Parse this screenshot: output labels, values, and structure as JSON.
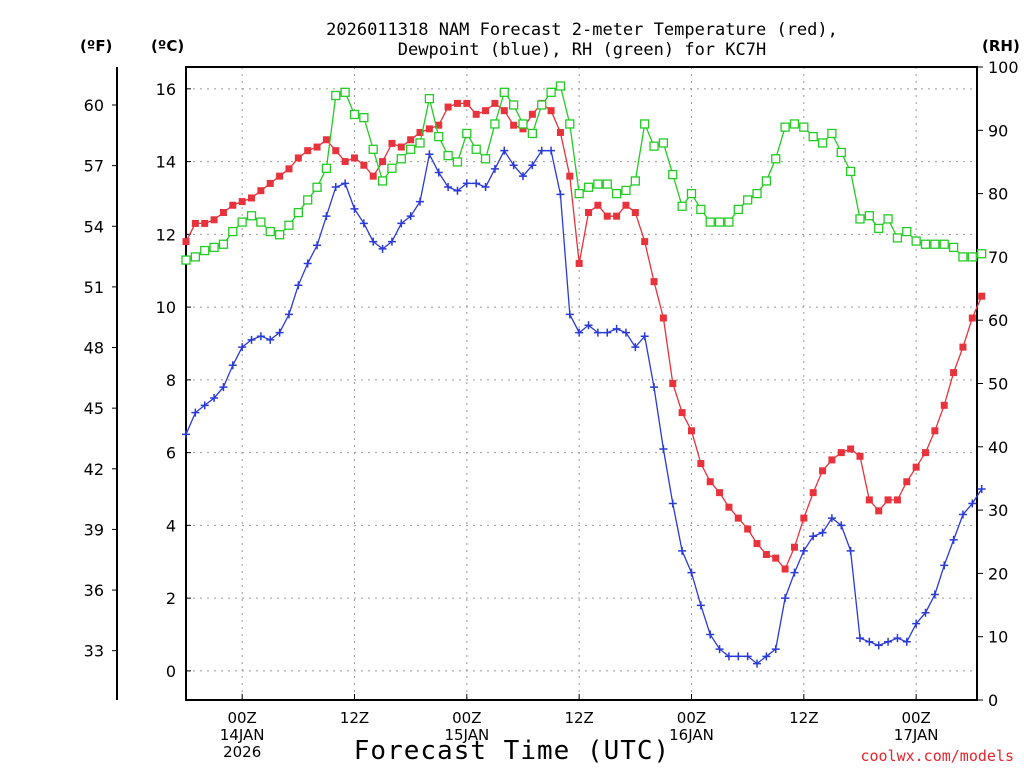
{
  "chart_data": {
    "type": "line",
    "title": [
      "2026011318 NAM Forecast 2-meter Temperature (red),",
      "Dewpoint (blue), RH (green) for KC7H"
    ],
    "xlabel": "Forecast Time (UTC)",
    "credit": "coolwx.com/models",
    "units": {
      "fahrenheit": "(ºF)",
      "celsius": "(ºC)",
      "rh": "(RH)"
    },
    "x_range_hours": [
      -6,
      78.5
    ],
    "x_ticks": [
      {
        "hour": 0,
        "lines": [
          "00Z",
          "14JAN",
          "2026"
        ]
      },
      {
        "hour": 12,
        "lines": [
          "12Z"
        ]
      },
      {
        "hour": 24,
        "lines": [
          "00Z",
          "15JAN"
        ]
      },
      {
        "hour": 36,
        "lines": [
          "12Z"
        ]
      },
      {
        "hour": 48,
        "lines": [
          "00Z",
          "16JAN"
        ]
      },
      {
        "hour": 60,
        "lines": [
          "12Z"
        ]
      },
      {
        "hour": 72,
        "lines": [
          "00Z",
          "17JAN"
        ]
      }
    ],
    "celsius_axis": {
      "range": [
        -0.8,
        16.6
      ],
      "ticks": [
        "0",
        "2",
        "4",
        "6",
        "8",
        "10",
        "12",
        "14",
        "16"
      ]
    },
    "fahrenheit_axis": {
      "ticks": [
        "33",
        "36",
        "39",
        "42",
        "45",
        "48",
        "51",
        "54",
        "57",
        "60"
      ]
    },
    "rh_axis": {
      "range": [
        0,
        100
      ],
      "ticks": [
        "0",
        "10",
        "20",
        "30",
        "40",
        "50",
        "60",
        "70",
        "80",
        "90",
        "100"
      ]
    },
    "series": [
      {
        "name": "2-meter Temperature",
        "axis": "celsius",
        "color": "#e8323c",
        "marker": "filled-square",
        "values": [
          11.8,
          12.3,
          12.3,
          12.4,
          12.6,
          12.8,
          12.9,
          13.0,
          13.2,
          13.4,
          13.6,
          13.8,
          14.1,
          14.3,
          14.4,
          14.6,
          14.3,
          14.0,
          14.1,
          13.9,
          13.6,
          14.0,
          14.5,
          14.4,
          14.6,
          14.8,
          14.9,
          15.0,
          15.5,
          15.6,
          15.6,
          15.3,
          15.4,
          15.6,
          15.4,
          15.0,
          14.9,
          15.3,
          15.6,
          15.4,
          14.8,
          13.6,
          11.2,
          12.6,
          12.8,
          12.5,
          12.5,
          12.8,
          12.6,
          11.8,
          10.7,
          9.7,
          7.9,
          7.1,
          6.6,
          5.7,
          5.2,
          4.9,
          4.5,
          4.2,
          3.9,
          3.5,
          3.2,
          3.1,
          2.8,
          3.4,
          4.2,
          4.9,
          5.5,
          5.8,
          6.0,
          6.1,
          5.9,
          4.7,
          4.4,
          4.7,
          4.7,
          5.2,
          5.6,
          6.0,
          6.6,
          7.3,
          8.2,
          8.9,
          9.7,
          10.3
        ]
      },
      {
        "name": "Dewpoint",
        "axis": "celsius",
        "color": "#2a3ad6",
        "marker": "plus",
        "values": [
          6.5,
          7.1,
          7.3,
          7.5,
          7.8,
          8.4,
          8.9,
          9.1,
          9.2,
          9.1,
          9.3,
          9.8,
          10.6,
          11.2,
          11.7,
          12.5,
          13.3,
          13.4,
          12.7,
          12.3,
          11.8,
          11.6,
          11.8,
          12.3,
          12.5,
          12.9,
          14.2,
          13.7,
          13.3,
          13.2,
          13.4,
          13.4,
          13.3,
          13.8,
          14.3,
          13.9,
          13.6,
          13.9,
          14.3,
          14.3,
          13.1,
          9.8,
          9.3,
          9.5,
          9.3,
          9.3,
          9.4,
          9.3,
          8.9,
          9.2,
          7.8,
          6.1,
          4.6,
          3.3,
          2.7,
          1.8,
          1.0,
          0.6,
          0.4,
          0.4,
          0.4,
          0.2,
          0.4,
          0.6,
          2.0,
          2.7,
          3.3,
          3.7,
          3.8,
          4.2,
          4.0,
          3.3,
          0.9,
          0.8,
          0.7,
          0.8,
          0.9,
          0.8,
          1.3,
          1.6,
          2.1,
          2.9,
          3.6,
          4.3,
          4.6,
          5.0
        ]
      },
      {
        "name": "RH",
        "axis": "rh",
        "color": "#22cc22",
        "marker": "open-square",
        "values": [
          69.5,
          70.0,
          71.0,
          71.5,
          72.0,
          74.0,
          75.5,
          76.5,
          75.5,
          74.0,
          73.5,
          75.0,
          77.0,
          79.0,
          81.0,
          84.0,
          95.5,
          96.0,
          92.5,
          92.0,
          87.0,
          82.0,
          84.0,
          85.5,
          87.0,
          88.0,
          95.0,
          89.0,
          86.0,
          85.0,
          89.5,
          87.0,
          85.5,
          91.0,
          96.0,
          94.0,
          91.0,
          89.5,
          94.0,
          96.0,
          97.0,
          91.0,
          80.0,
          81.0,
          81.5,
          81.5,
          80.0,
          80.5,
          82.0,
          91.0,
          87.5,
          88.0,
          83.0,
          78.0,
          80.0,
          77.5,
          75.5,
          75.5,
          75.5,
          77.5,
          79.0,
          80.0,
          82.0,
          85.5,
          90.5,
          91.0,
          90.5,
          89.0,
          88.0,
          89.5,
          86.5,
          83.5,
          76.0,
          76.5,
          74.5,
          76.0,
          73.0,
          74.0,
          72.5,
          72.0,
          72.0,
          72.0,
          71.5,
          70.0,
          70.0,
          70.5
        ]
      }
    ]
  }
}
